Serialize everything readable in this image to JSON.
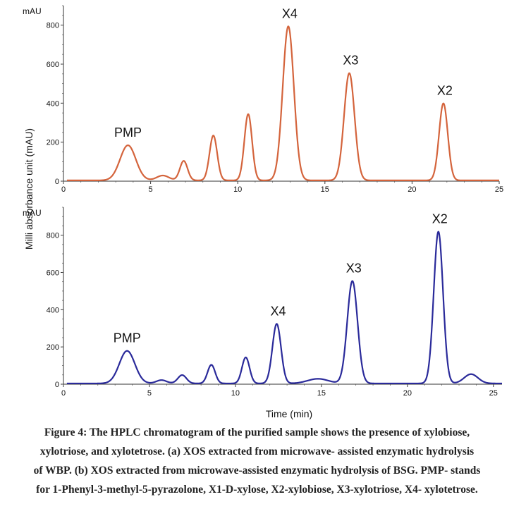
{
  "chart_data": [
    {
      "type": "line",
      "panel": "a",
      "yunit": "mAU",
      "ylabel": "Milli absorbance unit (mAU)",
      "xlim": [
        0,
        25
      ],
      "ylim": [
        0,
        900
      ],
      "xticks": [
        0,
        5,
        10,
        15,
        20,
        25
      ],
      "yticks": [
        0,
        200,
        400,
        600,
        800
      ],
      "grid": false,
      "series": [
        {
          "color": "#d4643c",
          "peaks": [
            {
              "x": 3.7,
              "y": 180,
              "label": "PMP"
            },
            {
              "x": 5.7,
              "y": 25,
              "label": ""
            },
            {
              "x": 6.9,
              "y": 100,
              "label": ""
            },
            {
              "x": 8.6,
              "y": 230,
              "label": ""
            },
            {
              "x": 10.6,
              "y": 340,
              "label": ""
            },
            {
              "x": 12.9,
              "y": 790,
              "label": "X4"
            },
            {
              "x": 16.4,
              "y": 550,
              "label": "X3"
            },
            {
              "x": 21.8,
              "y": 395,
              "label": "X2"
            }
          ]
        }
      ]
    },
    {
      "type": "line",
      "panel": "b",
      "yunit": "mAU",
      "xlabel": "Time (min)",
      "xlim": [
        0,
        25.5
      ],
      "ylim": [
        0,
        950
      ],
      "xticks": [
        0,
        5,
        10,
        15,
        20,
        25
      ],
      "yticks": [
        0,
        200,
        400,
        600,
        800
      ],
      "grid": false,
      "series": [
        {
          "color": "#2a2a9a",
          "peaks": [
            {
              "x": 3.7,
              "y": 175,
              "label": "PMP"
            },
            {
              "x": 5.7,
              "y": 18,
              "label": ""
            },
            {
              "x": 6.9,
              "y": 45,
              "label": ""
            },
            {
              "x": 8.6,
              "y": 100,
              "label": ""
            },
            {
              "x": 10.6,
              "y": 140,
              "label": ""
            },
            {
              "x": 12.4,
              "y": 320,
              "label": "X4"
            },
            {
              "x": 14.8,
              "y": 25,
              "label": ""
            },
            {
              "x": 16.8,
              "y": 550,
              "label": "X3"
            },
            {
              "x": 21.8,
              "y": 815,
              "label": "X2"
            },
            {
              "x": 23.7,
              "y": 50,
              "label": ""
            }
          ]
        }
      ]
    }
  ],
  "caption": {
    "lines": [
      "Figure 4: The HPLC chromatogram of the purified sample shows the presence of xylobiose,",
      "xylotriose, and xylotetrose. (a) XOS extracted from microwave- assisted enzymatic hydrolysis",
      "of WBP. (b) XOS extracted from microwave-assisted enzymatic hydrolysis of BSG. PMP- stands",
      "for 1-Phenyl-3-methyl-5-pyrazolone, X1-D-xylose, X2-xylobiose, X3-xylotriose, X4- xylotetrose."
    ]
  }
}
